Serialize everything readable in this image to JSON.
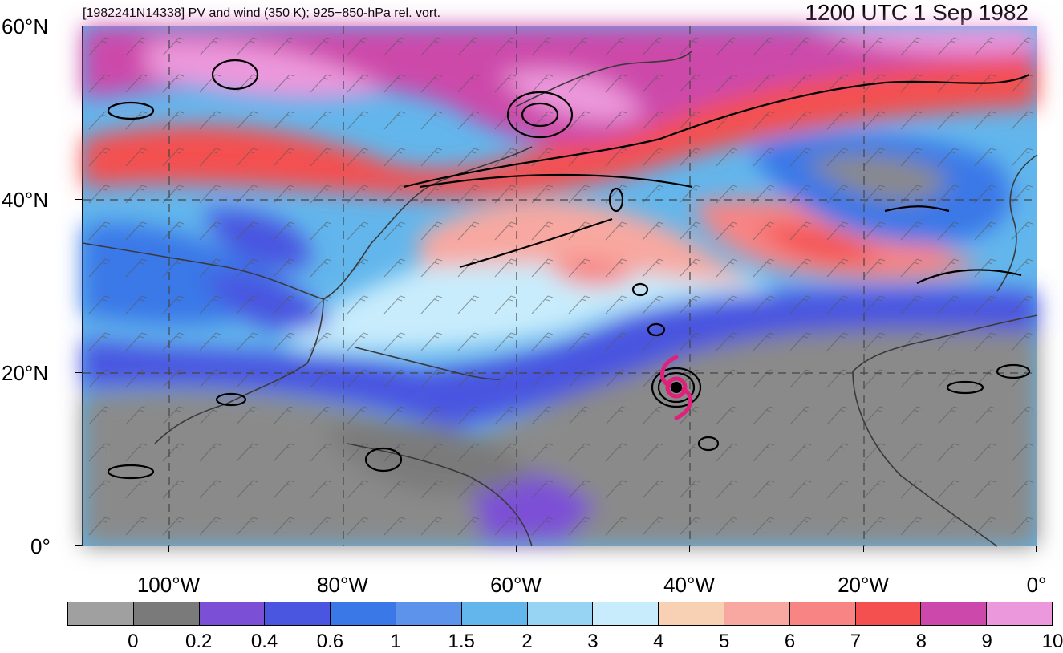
{
  "header": {
    "left_title": "[1982241N14338] PV and wind (350 K); 925−850-hPa rel. vort.",
    "right_title": "1200 UTC 1 Sep 1982"
  },
  "axes": {
    "lat_labels": [
      "60°N",
      "40°N",
      "20°N",
      "0°"
    ],
    "lon_labels": [
      "100°W",
      "80°W",
      "60°W",
      "40°W",
      "20°W",
      "0°"
    ],
    "lat_range": [
      0,
      60
    ],
    "lon_range": [
      -110,
      0
    ]
  },
  "legend": {
    "levels": [
      "0",
      "0.2",
      "0.4",
      "0.6",
      "1",
      "1.5",
      "2",
      "3",
      "4",
      "5",
      "6",
      "7",
      "8",
      "9",
      "10"
    ],
    "colors": [
      "#a0a0a0",
      "#7a7a7a",
      "#7b4fd6",
      "#4a55e0",
      "#3a78e8",
      "#5e93ec",
      "#62b6ec",
      "#97d4f4",
      "#c8ecfc",
      "#f8d0b4",
      "#f8a8a0",
      "#f88484",
      "#f45050",
      "#cc48aa",
      "#ec98dc"
    ]
  },
  "storm_marker": {
    "symbol": "tropical-cyclone",
    "color": "#e0207a",
    "lat": 19,
    "lon": -41.5
  }
}
